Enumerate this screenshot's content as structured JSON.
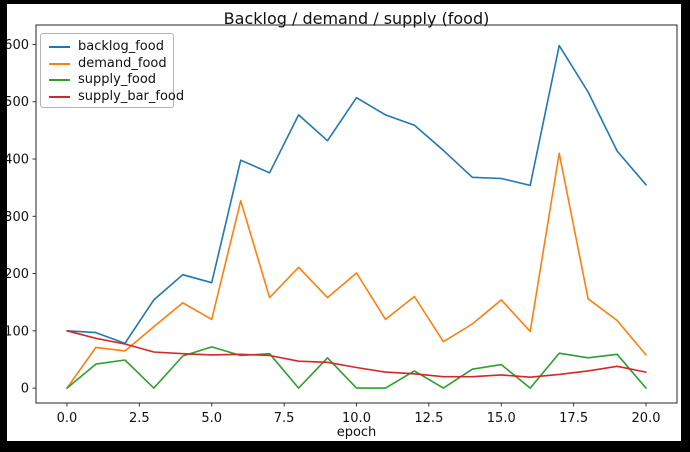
{
  "window": {
    "background_color": "#000000",
    "figure_background_color": "#ffffff"
  },
  "chart_data": {
    "type": "line",
    "title": "Backlog / demand / supply (food)",
    "xlabel": "epoch",
    "ylabel": "",
    "grid": false,
    "legend_position": "upper left",
    "axis_color": "#262626",
    "text_color": "#111111",
    "xlim": [
      -1.07,
      21.07
    ],
    "ylim": [
      -26,
      634
    ],
    "xticks": [
      0,
      2.5,
      5,
      7.5,
      10,
      12.5,
      15,
      17.5,
      20
    ],
    "xtick_labels": [
      "0.0",
      "2.5",
      "5.0",
      "7.5",
      "10.0",
      "12.5",
      "15.0",
      "17.5",
      "20.0"
    ],
    "yticks": [
      0,
      100,
      200,
      300,
      400,
      500,
      600
    ],
    "ytick_labels": [
      "0",
      "100",
      "200",
      "300",
      "400",
      "500",
      "600"
    ],
    "x": [
      0,
      1,
      2,
      3,
      4,
      5,
      6,
      7,
      8,
      9,
      10,
      11,
      12,
      13,
      14,
      15,
      16,
      17,
      18,
      19,
      20
    ],
    "series": [
      {
        "name": "backlog_food",
        "color": "#1f77b4",
        "values": [
          100,
          97,
          78,
          154,
          198,
          184,
          398,
          376,
          477,
          432,
          507,
          477,
          459,
          415,
          368,
          366,
          354,
          598,
          517,
          414,
          355
        ]
      },
      {
        "name": "demand_food",
        "color": "#ff7f0e",
        "values": [
          0,
          71,
          65,
          107,
          149,
          120,
          327,
          158,
          211,
          158,
          201,
          120,
          160,
          81,
          112,
          154,
          99,
          410,
          156,
          118,
          58
        ]
      },
      {
        "name": "supply_food",
        "color": "#2ca02c",
        "values": [
          0,
          42,
          49,
          0,
          56,
          72,
          57,
          60,
          0,
          53,
          0,
          0,
          30,
          0,
          33,
          41,
          0,
          61,
          53,
          59,
          0
        ]
      },
      {
        "name": "supply_bar_food",
        "color": "#d62728",
        "values": [
          100,
          87,
          77,
          63,
          60,
          58,
          59,
          57,
          47,
          45,
          36,
          28,
          25,
          20,
          20,
          23,
          19,
          24,
          30,
          38,
          28
        ]
      }
    ]
  }
}
